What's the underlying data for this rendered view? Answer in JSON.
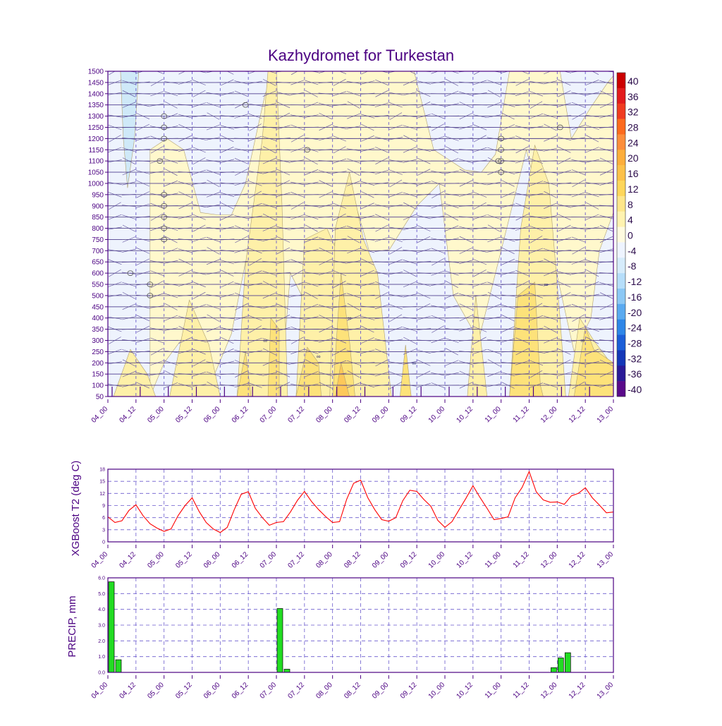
{
  "title": "Kazhydromet for Turkestan",
  "colors": {
    "frame": "#4b0082",
    "tick_label": "#4b0082",
    "grid": "#6a5acd",
    "temp_line": "#ff0000",
    "precip_bar": "#22dd22"
  },
  "chart_data": [
    {
      "id": "cross-section",
      "type": "heatmap",
      "title": "Kazhydromet for Turkestan",
      "x_tick_labels": [
        "04_00",
        "04_12",
        "05_00",
        "05_12",
        "06_00",
        "06_12",
        "07_00",
        "07_12",
        "08_00",
        "08_12",
        "09_00",
        "09_12",
        "10_00",
        "10_12",
        "11_00",
        "11_12",
        "12_00",
        "12_12",
        "13_00"
      ],
      "y_tick_labels": [
        "1500",
        "1450",
        "1400",
        "1350",
        "1300",
        "1250",
        "1200",
        "1150",
        "1100",
        "1050",
        "1000",
        "950",
        "900",
        "850",
        "800",
        "750",
        "700",
        "650",
        "600",
        "550",
        "500",
        "450",
        "400",
        "350",
        "300",
        "250",
        "200",
        "150",
        "100",
        "50"
      ],
      "ylim": [
        50,
        1500
      ],
      "colorbar": {
        "labels": [
          "40",
          "36",
          "32",
          "28",
          "24",
          "20",
          "16",
          "12",
          "8",
          "4",
          "0",
          "-4",
          "-8",
          "-12",
          "-16",
          "-20",
          "-24",
          "-28",
          "-32",
          "-36",
          "-40"
        ],
        "colors": [
          "#cc0000",
          "#e31a1c",
          "#f03b20",
          "#fd6a1e",
          "#fd8d3c",
          "#fdae3c",
          "#fdc14a",
          "#fed65a",
          "#fee68a",
          "#fff3b0",
          "#fffbe0",
          "#eef4ff",
          "#d6ecfb",
          "#b6defa",
          "#8cc8f5",
          "#5aaaf0",
          "#2e86e8",
          "#1b5ed8",
          "#1437b8",
          "#2a1a98",
          "#5a0a8a"
        ]
      }
    },
    {
      "id": "temperature",
      "type": "line",
      "ylabel": "XGBoost T2 (deg C)",
      "xlabel": "",
      "ylim": [
        0,
        18
      ],
      "y_ticks": [
        "0",
        "3",
        "6",
        "9",
        "12",
        "15",
        "18"
      ],
      "x_tick_labels": [
        "04_00",
        "04_12",
        "05_00",
        "05_12",
        "06_00",
        "06_12",
        "07_00",
        "07_12",
        "08_00",
        "08_12",
        "09_00",
        "09_12",
        "10_00",
        "10_12",
        "11_00",
        "11_12",
        "12_00",
        "12_12",
        "13_00"
      ],
      "series": [
        {
          "name": "T2",
          "x": [
            0,
            3,
            6,
            9,
            12,
            15,
            18,
            21,
            24,
            27,
            30,
            33,
            36,
            39,
            42,
            45,
            48,
            51,
            54,
            57,
            60,
            63,
            66,
            69,
            72,
            75,
            78,
            81,
            84,
            87,
            90,
            93,
            96,
            99,
            102,
            105,
            108,
            111,
            114,
            117,
            120,
            123,
            126,
            129,
            132,
            135,
            138,
            141,
            144,
            147,
            150,
            153,
            156,
            159,
            162,
            165,
            168,
            171,
            174,
            177,
            180,
            183,
            186,
            189,
            192,
            195,
            198,
            201,
            204,
            207,
            210,
            213,
            216
          ],
          "values": [
            6.2,
            4.8,
            5.2,
            7.8,
            9.2,
            6.5,
            4.5,
            3.4,
            2.6,
            3.2,
            6.5,
            9.0,
            10.9,
            7.5,
            4.8,
            3.2,
            2.3,
            3.6,
            8.0,
            11.8,
            12.4,
            8.3,
            6.0,
            4.1,
            4.8,
            5.0,
            7.4,
            10.3,
            12.5,
            10.0,
            8.0,
            6.3,
            4.8,
            5.0,
            10.5,
            14.5,
            15.3,
            11.0,
            8.0,
            5.5,
            5.1,
            6.0,
            10.2,
            12.8,
            12.5,
            10.5,
            8.8,
            5.3,
            3.6,
            5.0,
            7.9,
            10.8,
            13.9,
            11.0,
            8.3,
            5.5,
            5.8,
            6.2,
            10.9,
            13.5,
            17.4,
            12.4,
            10.4,
            9.8,
            9.9,
            9.3,
            11.4,
            12.0,
            13.4,
            10.9,
            9.1,
            7.2,
            7.4
          ]
        }
      ]
    },
    {
      "id": "precipitation",
      "type": "bar",
      "ylabel": "PRECIP, mm",
      "xlabel": "",
      "ylim": [
        0,
        6.0
      ],
      "y_ticks": [
        "0.0",
        "1.0",
        "2.0",
        "3.0",
        "4.0",
        "5.0",
        "6.0"
      ],
      "x_tick_labels": [
        "04_00",
        "04_12",
        "05_00",
        "05_12",
        "06_00",
        "06_12",
        "07_00",
        "07_12",
        "08_00",
        "08_12",
        "09_00",
        "09_12",
        "10_00",
        "10_12",
        "11_00",
        "11_12",
        "12_00",
        "12_12",
        "13_00"
      ],
      "series": [
        {
          "name": "PRECIP",
          "x": [
            1.5,
            4.5,
            73.5,
            76.5,
            190.5,
            193.5,
            196.5
          ],
          "values": [
            5.75,
            0.8,
            4.05,
            0.2,
            0.3,
            0.92,
            1.25
          ]
        }
      ]
    }
  ]
}
